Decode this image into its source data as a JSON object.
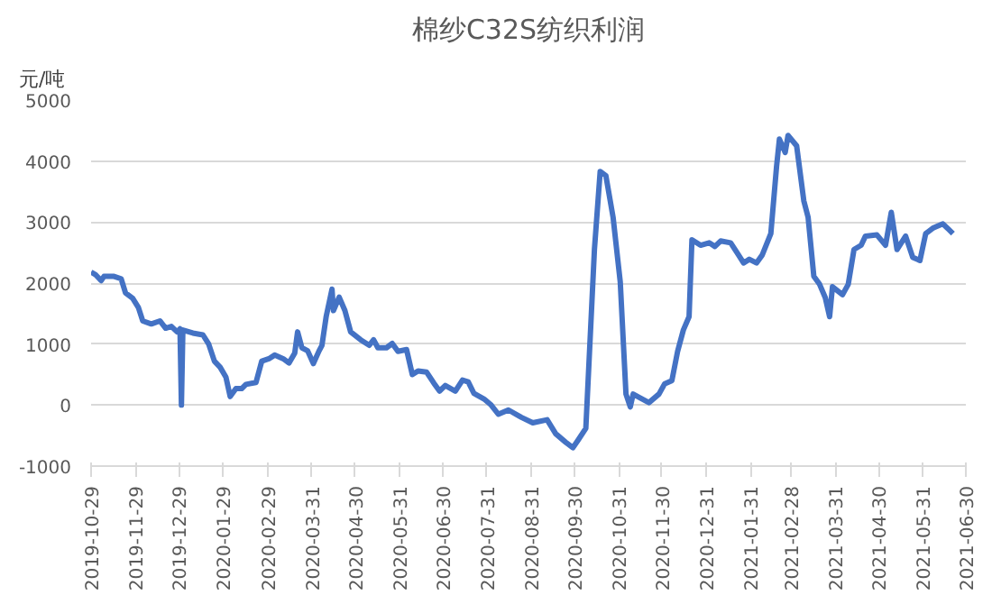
{
  "chart_data": {
    "type": "line",
    "title": "棉纱C32S纺织利润",
    "ylabel": "元/吨",
    "x": [
      "2019-10-29",
      "2019-11-01",
      "2019-11-05",
      "2019-11-07",
      "2019-11-14",
      "2019-11-19",
      "2019-11-22",
      "2019-11-27",
      "2019-12-01",
      "2019-12-04",
      "2019-12-10",
      "2019-12-16",
      "2019-12-20",
      "2019-12-24",
      "2019-12-28",
      "2019-12-30",
      "2019-12-31",
      "2020-01-01",
      "2020-01-08",
      "2020-01-15",
      "2020-01-19",
      "2020-01-23",
      "2020-01-27",
      "2020-01-31",
      "2020-02-03",
      "2020-02-07",
      "2020-02-11",
      "2020-02-14",
      "2020-02-21",
      "2020-02-25",
      "2020-03-01",
      "2020-03-05",
      "2020-03-11",
      "2020-03-15",
      "2020-03-19",
      "2020-03-21",
      "2020-03-24",
      "2020-03-28",
      "2020-04-01",
      "2020-04-05",
      "2020-04-07",
      "2020-04-10",
      "2020-04-14",
      "2020-04-15",
      "2020-04-19",
      "2020-04-23",
      "2020-04-27",
      "2020-05-04",
      "2020-05-10",
      "2020-05-13",
      "2020-05-16",
      "2020-05-22",
      "2020-05-26",
      "2020-05-30",
      "2020-06-05",
      "2020-06-09",
      "2020-06-13",
      "2020-06-19",
      "2020-06-24",
      "2020-06-28",
      "2020-07-02",
      "2020-07-09",
      "2020-07-14",
      "2020-07-18",
      "2020-07-22",
      "2020-07-29",
      "2020-08-03",
      "2020-08-08",
      "2020-08-15",
      "2020-08-24",
      "2020-09-01",
      "2020-09-11",
      "2020-09-17",
      "2020-09-24",
      "2020-09-29",
      "2020-10-03",
      "2020-10-08",
      "2020-10-14",
      "2020-10-18",
      "2020-10-22",
      "2020-10-27",
      "2020-11-01",
      "2020-11-05",
      "2020-11-08",
      "2020-11-10",
      "2020-11-14",
      "2020-11-21",
      "2020-11-28",
      "2020-12-02",
      "2020-12-07",
      "2020-12-11",
      "2020-12-15",
      "2020-12-19",
      "2020-12-21",
      "2020-12-27",
      "2021-01-02",
      "2021-01-06",
      "2021-01-10",
      "2021-01-17",
      "2021-01-22",
      "2021-01-26",
      "2021-01-30",
      "2021-02-04",
      "2021-02-08",
      "2021-02-14",
      "2021-02-18",
      "2021-02-20",
      "2021-02-24",
      "2021-02-26",
      "2021-03-04",
      "2021-03-09",
      "2021-03-12",
      "2021-03-16",
      "2021-03-20",
      "2021-03-24",
      "2021-03-27",
      "2021-03-29",
      "2021-04-05",
      "2021-04-09",
      "2021-04-13",
      "2021-04-18",
      "2021-04-21",
      "2021-04-29",
      "2021-05-05",
      "2021-05-09",
      "2021-05-13",
      "2021-05-19",
      "2021-05-24",
      "2021-05-29",
      "2021-06-02",
      "2021-06-07",
      "2021-06-14",
      "2021-06-18",
      "2021-06-21"
    ],
    "series": [
      {
        "color": "#4472c4",
        "values": [
          2180,
          2140,
          2040,
          2110,
          2110,
          2070,
          1840,
          1750,
          1600,
          1380,
          1330,
          1380,
          1260,
          1290,
          1200,
          1250,
          0,
          1230,
          1180,
          1150,
          1000,
          720,
          620,
          460,
          140,
          270,
          270,
          340,
          370,
          720,
          760,
          820,
          760,
          690,
          850,
          1200,
          940,
          890,
          680,
          890,
          980,
          1460,
          1900,
          1550,
          1770,
          1550,
          1200,
          1070,
          980,
          1070,
          940,
          940,
          1010,
          880,
          910,
          500,
          560,
          540,
          360,
          230,
          320,
          230,
          410,
          380,
          190,
          100,
          0,
          -150,
          -80,
          -200,
          -290,
          -240,
          -470,
          -610,
          -700,
          -560,
          -380,
          2550,
          3830,
          3760,
          3080,
          2020,
          180,
          -30,
          180,
          130,
          40,
          180,
          350,
          400,
          880,
          1230,
          1450,
          2710,
          2620,
          2660,
          2600,
          2690,
          2660,
          2480,
          2330,
          2390,
          2330,
          2460,
          2810,
          3910,
          4360,
          4140,
          4420,
          4250,
          3350,
          3080,
          2110,
          1980,
          1760,
          1450,
          1940,
          1810,
          1980,
          2550,
          2620,
          2770,
          2790,
          2620,
          3160,
          2550,
          2770,
          2420,
          2370,
          2810,
          2900,
          2970,
          2880,
          2810
        ]
      }
    ],
    "xlim": [
      "2019-10-29",
      "2021-06-30"
    ],
    "xticks": [
      "2019-10-29",
      "2019-11-29",
      "2019-12-29",
      "2020-01-29",
      "2020-02-29",
      "2020-03-31",
      "2020-04-30",
      "2020-05-31",
      "2020-06-30",
      "2020-07-31",
      "2020-08-31",
      "2020-09-30",
      "2020-10-31",
      "2020-11-30",
      "2020-12-31",
      "2021-01-31",
      "2021-02-28",
      "2021-03-31",
      "2021-04-30",
      "2021-05-31",
      "2021-06-30"
    ],
    "ylim": [
      -1000,
      5000
    ],
    "yticks": [
      -1000,
      0,
      1000,
      2000,
      3000,
      4000,
      5000
    ],
    "grid": "y",
    "marker": "none",
    "line_style": "solid"
  }
}
